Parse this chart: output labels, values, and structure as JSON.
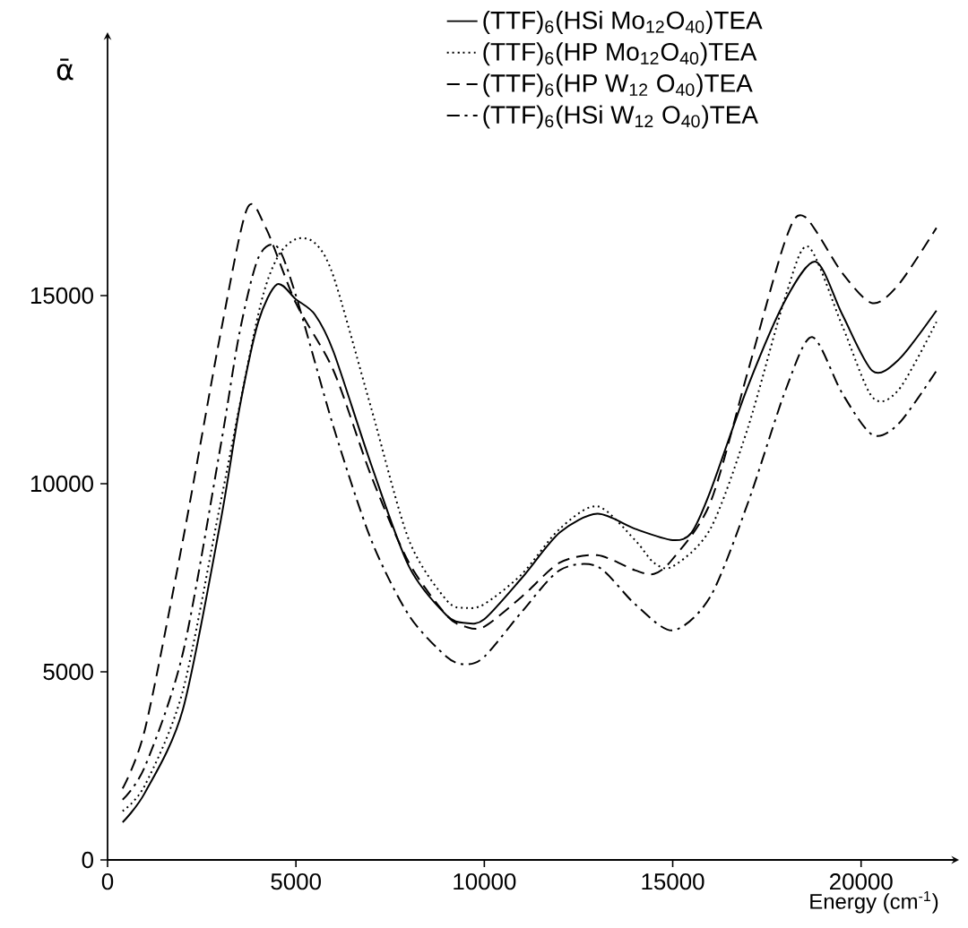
{
  "chart_data": {
    "type": "line",
    "xlabel": "Energy (cm$^{-1}$)",
    "ylabel": "ᾱ",
    "xlim": [
      0,
      22600
    ],
    "ylim": [
      0,
      22000
    ],
    "xticks": [
      0,
      5000,
      10000,
      15000,
      20000
    ],
    "yticks": [
      0,
      5000,
      10000,
      15000
    ],
    "legend": "top right",
    "grid": false,
    "series": [
      {
        "name": "(TTF)$_{6}$(HSi Mo$_{12}$O$_{40}$)TEA",
        "color": "#000000",
        "line_style": "solid",
        "x": [
          400,
          1000,
          2000,
          3000,
          3500,
          4000,
          4500,
          5000,
          5500,
          6000,
          7000,
          8000,
          9000,
          9500,
          10000,
          11000,
          12000,
          13000,
          14000,
          15000,
          15500,
          16000,
          17000,
          18000,
          18800,
          19500,
          20300,
          21000,
          22000
        ],
        "values": [
          1000,
          1800,
          4000,
          9000,
          12000,
          14300,
          15300,
          14900,
          14500,
          13500,
          10500,
          7800,
          6500,
          6300,
          6400,
          7500,
          8700,
          9200,
          8800,
          8500,
          8700,
          9800,
          12600,
          14900,
          15900,
          14500,
          13000,
          13300,
          14600
        ]
      },
      {
        "name": "(TTF)$_{6}$(HP Mo$_{12}$O$_{40}$)TEA",
        "color": "#000000",
        "line_style": "dotted",
        "x": [
          400,
          1000,
          2000,
          3000,
          4000,
          4500,
          5000,
          5500,
          6000,
          7000,
          8000,
          9000,
          9500,
          10000,
          11000,
          12000,
          13000,
          14000,
          14500,
          15000,
          16000,
          17000,
          18000,
          18600,
          19500,
          20300,
          21000,
          22000
        ],
        "values": [
          1300,
          2000,
          4500,
          9500,
          14500,
          16000,
          16500,
          16400,
          15500,
          12000,
          8500,
          6900,
          6700,
          6800,
          7600,
          8800,
          9400,
          8500,
          7900,
          7800,
          8800,
          11500,
          15000,
          16300,
          14200,
          12300,
          12500,
          14300
        ]
      },
      {
        "name": "(TTF)$_{6}$(HP W$_{12}$ O$_{40}$)TEA",
        "color": "#000000",
        "line_style": "dashed",
        "x": [
          400,
          1000,
          2000,
          3000,
          3700,
          4200,
          5000,
          6000,
          7000,
          8000,
          9000,
          9500,
          10000,
          11000,
          12000,
          13000,
          14000,
          14500,
          15000,
          16000,
          17000,
          18000,
          18500,
          19500,
          20300,
          21000,
          22000
        ],
        "values": [
          1900,
          3500,
          8500,
          14000,
          17300,
          16800,
          14800,
          13000,
          10200,
          7900,
          6500,
          6200,
          6200,
          7000,
          7900,
          8100,
          7700,
          7600,
          8000,
          9500,
          13000,
          16500,
          17100,
          15600,
          14800,
          15300,
          16800
        ]
      },
      {
        "name": "(TTF)$_{6}$(HSi W$_{12}$ O$_{40}$)TEA",
        "color": "#000000",
        "line_style": "dashdot",
        "x": [
          400,
          1000,
          2000,
          3000,
          3500,
          4000,
          4500,
          5000,
          6000,
          7000,
          8000,
          9000,
          9500,
          10000,
          11000,
          12000,
          13000,
          14000,
          15000,
          16000,
          17000,
          18000,
          18700,
          19500,
          20300,
          21000,
          22000
        ],
        "values": [
          1600,
          2500,
          5500,
          11000,
          14000,
          16000,
          16300,
          15000,
          11500,
          8500,
          6500,
          5400,
          5200,
          5400,
          6600,
          7700,
          7800,
          6800,
          6100,
          7000,
          9500,
          12500,
          13900,
          12400,
          11300,
          11600,
          13000
        ]
      }
    ]
  }
}
